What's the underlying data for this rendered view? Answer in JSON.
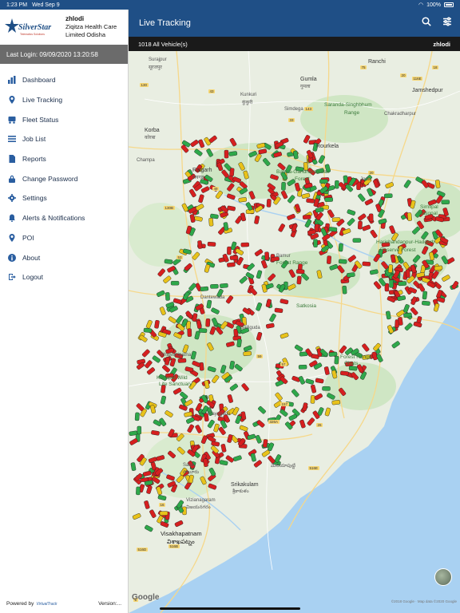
{
  "status": {
    "time": "1:23 PM",
    "date": "Wed Sep 9",
    "battery": "100%"
  },
  "sidebar": {
    "logo_text": "SilverStar",
    "logo_tagline": "Telematics Solutions",
    "user": "zhlodi",
    "org": "Ziqitza Health Care Limited Odisha",
    "last_login": "Last Login: 09/09/2020 13:20:58",
    "items": [
      {
        "label": "Dashboard",
        "icon": "chart-icon"
      },
      {
        "label": "Live Tracking",
        "icon": "location-pin-icon"
      },
      {
        "label": "Fleet Status",
        "icon": "truck-icon"
      },
      {
        "label": "Job List",
        "icon": "list-icon"
      },
      {
        "label": "Reports",
        "icon": "document-icon"
      },
      {
        "label": "Change Password",
        "icon": "lock-icon"
      },
      {
        "label": "Settings",
        "icon": "gear-icon"
      },
      {
        "label": "Alerts & Notifications",
        "icon": "bell-icon"
      },
      {
        "label": "POI",
        "icon": "location-pin-icon"
      },
      {
        "label": "About",
        "icon": "info-icon"
      },
      {
        "label": "Logout",
        "icon": "logout-icon"
      }
    ],
    "powered_by": "Powered by",
    "powered_logo": "VirtualTrack",
    "version": "Version:..."
  },
  "header": {
    "title": "Live Tracking"
  },
  "subbar": {
    "count": "1018 All Vehicle(s)",
    "user": "zhlodi"
  },
  "map": {
    "google": "Google",
    "copyright": "©2018 Google · Map data ©2020 Google",
    "labels": [
      {
        "t": "Surajpur",
        "c": ""
      },
      {
        "t": "सूरजपुर",
        "c": ""
      },
      {
        "t": "Ranchi",
        "c": "big"
      },
      {
        "t": "Gumla",
        "c": "big"
      },
      {
        "t": "गुमला",
        "c": ""
      },
      {
        "t": "Kunkuri",
        "c": ""
      },
      {
        "t": "कुंकुरी",
        "c": ""
      },
      {
        "t": "Jamshedpur",
        "c": "big"
      },
      {
        "t": "Saranda-Singhbhum",
        "c": "park"
      },
      {
        "t": "Range",
        "c": "park"
      },
      {
        "t": "Chakradharpur",
        "c": ""
      },
      {
        "t": "Simdega",
        "c": ""
      },
      {
        "t": "Korba",
        "c": "big"
      },
      {
        "t": "कोरबा",
        "c": ""
      },
      {
        "t": "Champa",
        "c": ""
      },
      {
        "t": "Raigarh",
        "c": "big"
      },
      {
        "t": "रायगढ़",
        "c": ""
      },
      {
        "t": "Rourkela",
        "c": "big"
      },
      {
        "t": "Bamra-Gandhamardan",
        "c": "park"
      },
      {
        "t": "Forest",
        "c": "park"
      },
      {
        "t": "Joda",
        "c": ""
      },
      {
        "t": "Simlipal",
        "c": "park"
      },
      {
        "t": "National",
        "c": "park"
      },
      {
        "t": "Harichandanpur-Hadgarh",
        "c": "park"
      },
      {
        "t": "Reserve Forest",
        "c": "park"
      },
      {
        "t": "Bamur",
        "c": ""
      },
      {
        "t": "Forest Range",
        "c": "park"
      },
      {
        "t": "Satkosia",
        "c": "park"
      },
      {
        "t": "Balliguda",
        "c": ""
      },
      {
        "t": "Bhawanipatna",
        "c": ""
      },
      {
        "t": "Karlapat Wild",
        "c": "park"
      },
      {
        "t": "Life Sanctuary",
        "c": "park"
      },
      {
        "t": "Rayagada",
        "c": ""
      },
      {
        "t": "Salur",
        "c": ""
      },
      {
        "t": "సాలూరు",
        "c": ""
      },
      {
        "t": "Srikakulam",
        "c": "big"
      },
      {
        "t": "శ్రీకాకుళం",
        "c": ""
      },
      {
        "t": "Vizianagaram",
        "c": ""
      },
      {
        "t": "విజయనగరం",
        "c": ""
      },
      {
        "t": "Visakhapatnam",
        "c": "city"
      },
      {
        "t": "విశాఖపట్నం",
        "c": "city"
      },
      {
        "t": "Forest Range",
        "c": "park"
      },
      {
        "t": "Ghats",
        "c": "park"
      },
      {
        "t": "మెలియాపుట్టి",
        "c": ""
      },
      {
        "t": "Dantewada",
        "c": ""
      }
    ],
    "roads": [
      "43",
      "130",
      "143",
      "33",
      "20",
      "75",
      "116E",
      "18",
      "130B",
      "53",
      "49",
      "20",
      "57",
      "59",
      "157",
      "326A",
      "26",
      "516E",
      "16",
      "516B",
      "516D",
      "5"
    ]
  }
}
